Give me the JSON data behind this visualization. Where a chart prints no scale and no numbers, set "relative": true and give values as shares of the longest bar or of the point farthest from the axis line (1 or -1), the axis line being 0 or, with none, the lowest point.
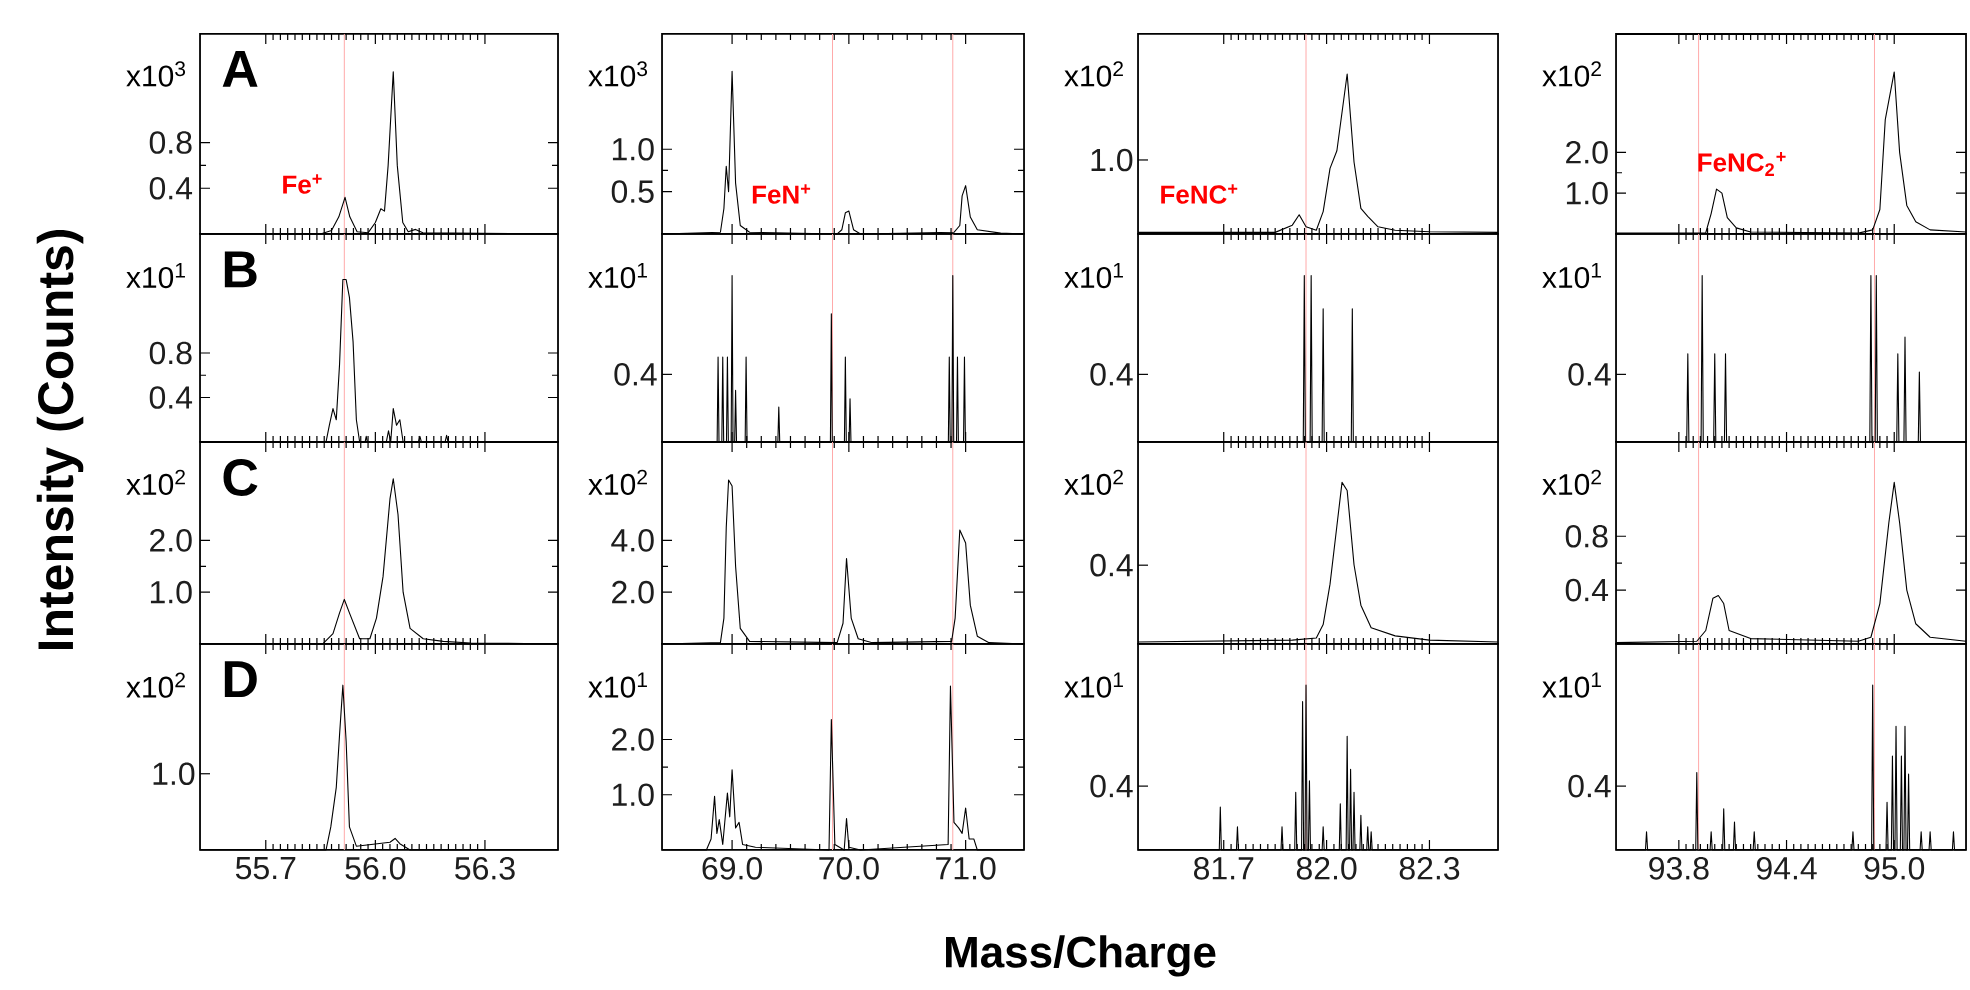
{
  "chart_data": [
    {
      "type": "line",
      "title": "A",
      "ylabel": "x10$^{3}$",
      "color": "#000000",
      "x": [
        55.52,
        55.85,
        55.88,
        55.9,
        55.917,
        55.93,
        55.95,
        55.98,
        56.0,
        56.015,
        56.025,
        56.035,
        56.049,
        56.06,
        56.075,
        56.09,
        56.11,
        56.13,
        56.5
      ],
      "values": [
        0,
        0,
        0.03,
        0.15,
        0.32,
        0.15,
        0.02,
        0.01,
        0.1,
        0.22,
        0.2,
        0.6,
        1.42,
        0.6,
        0.1,
        0.02,
        0.04,
        0.01,
        0
      ],
      "xlim": [
        55.52,
        56.5
      ],
      "ylim": [
        0,
        1.75
      ],
      "xticks": [
        55.7,
        56,
        56.3
      ],
      "yticks": [
        0.4,
        0.8
      ],
      "tick_labels": "y",
      "ref_lines": [
        {
          "axis": "x",
          "value": 55.915,
          "color": "#ffaaaa"
        }
      ],
      "annotations": [
        "Fe$^{+}$"
      ]
    },
    {
      "type": "line",
      "ylabel": "x10$^{3}$",
      "color": "#000000",
      "x": [
        68.4,
        68.9,
        68.93,
        68.95,
        68.97,
        69.0,
        69.03,
        69.07,
        69.15,
        69.9,
        69.94,
        69.97,
        70.0,
        70.04,
        70.1,
        70.9,
        70.95,
        70.97,
        71.0,
        71.04,
        71.1,
        71.3,
        71.5
      ],
      "values": [
        0,
        0.02,
        0.3,
        0.8,
        0.5,
        1.92,
        0.6,
        0.1,
        0.02,
        0,
        0.05,
        0.25,
        0.27,
        0.05,
        0,
        0.02,
        0.1,
        0.45,
        0.57,
        0.2,
        0.05,
        0.01,
        0
      ],
      "xlim": [
        68.4,
        71.5
      ],
      "ylim": [
        0,
        2.36
      ],
      "xticks": [
        69,
        70,
        71
      ],
      "yticks": [
        0.5,
        {
          "value": 1,
          "label": "1.0"
        }
      ],
      "tick_labels": "y",
      "ref_lines": [
        {
          "axis": "x",
          "value": 69.86,
          "color": "#ffaaaa"
        },
        {
          "axis": "x",
          "value": 70.89,
          "color": "#ffaaaa"
        }
      ],
      "annotations": [
        "FeN$^{+}$"
      ]
    },
    {
      "type": "line",
      "relative": true,
      "ylabel": "x10$^{2}$",
      "color": "#000000",
      "x": [
        81.45,
        81.85,
        81.9,
        81.92,
        81.94,
        81.97,
        81.99,
        82.01,
        82.03,
        82.06,
        82.08,
        82.1,
        82.12,
        82.15,
        82.2,
        82.3,
        82.5
      ],
      "values": [
        0.01,
        0.01,
        0.055,
        0.12,
        0.045,
        0.023,
        0.14,
        0.41,
        0.52,
        1,
        0.45,
        0.16,
        0.11,
        0.045,
        0.023,
        0.014,
        0.01
      ],
      "xlim": [
        81.45,
        82.5
      ],
      "xticks": [
        81.7,
        82,
        82.3
      ],
      "tick_labels": "y",
      "ref_lines": [
        {
          "axis": "x",
          "value": 81.94,
          "color": "#ffaaaa"
        }
      ],
      "annotations": [
        "FeNC$^{+}$",
        "1.0"
      ]
    },
    {
      "type": "line",
      "ylabel": "x10$^{2}$",
      "color": "#000000",
      "x": [
        93.45,
        93.95,
        93.98,
        94.01,
        94.04,
        94.07,
        94.12,
        94.2,
        94.8,
        94.88,
        94.92,
        94.95,
        95.0,
        95.03,
        95.07,
        95.12,
        95.2,
        95.4
      ],
      "values": [
        0.02,
        0.03,
        0.5,
        1.1,
        1.0,
        0.4,
        0.15,
        0.05,
        0.02,
        0.1,
        0.6,
        2.8,
        3.97,
        2.0,
        0.7,
        0.3,
        0.1,
        0.05
      ],
      "xlim": [
        93.45,
        95.4
      ],
      "ylim": [
        0,
        4.9
      ],
      "xticks": [
        93.8,
        94.4,
        95
      ],
      "yticks": [
        {
          "value": 1,
          "label": "1.0"
        },
        {
          "value": 2,
          "label": "2.0"
        }
      ],
      "tick_labels": "y",
      "ref_lines": [
        {
          "axis": "x",
          "value": 93.91,
          "color": "#ffaaaa"
        },
        {
          "axis": "x",
          "value": 94.89,
          "color": "#ffaaaa"
        }
      ],
      "annotations": [
        "FeNC$_{2}$$^{+}$"
      ]
    },
    {
      "type": "line",
      "title": "B",
      "ylabel": "x10$^{1}$",
      "color": "#000000",
      "x": [
        55.52,
        55.865,
        55.874,
        55.884,
        55.893,
        55.902,
        55.911,
        55.92,
        55.929,
        55.939,
        55.948,
        55.957,
        55.972,
        55.975,
        55.978,
        56.03,
        56.036,
        56.042,
        56.049,
        56.058,
        56.067,
        56.076,
        56.118,
        56.122,
        56.126,
        56.191,
        56.195,
        56.199,
        56.5
      ],
      "values": [
        0,
        0,
        0.15,
        0.3,
        0.2,
        0.7,
        1.46,
        1.46,
        1.3,
        0.9,
        0.2,
        0,
        0,
        0.05,
        0,
        0,
        0.1,
        0,
        0.3,
        0.15,
        0.2,
        0,
        0,
        0.05,
        0,
        0,
        0.06,
        0,
        0
      ],
      "xlim": [
        55.52,
        56.5
      ],
      "ylim": [
        0,
        1.87
      ],
      "xticks": [
        55.7,
        56,
        56.3
      ],
      "yticks": [
        0.4,
        0.8
      ],
      "tick_labels": "y",
      "ref_lines": [
        {
          "axis": "x",
          "value": 55.915,
          "color": "#ffaaaa"
        }
      ]
    },
    {
      "type": "line",
      "relative": true,
      "ylabel": "x10$^{1}$",
      "color": "#000000",
      "x": [
        68.4,
        68.872,
        68.88,
        68.888,
        68.912,
        68.92,
        68.928,
        68.952,
        68.96,
        68.968,
        68.992,
        69.0,
        69.008,
        69.022,
        69.03,
        69.038,
        69.112,
        69.12,
        69.128,
        69.392,
        69.4,
        69.408,
        69.842,
        69.85,
        69.858,
        69.962,
        69.97,
        69.978,
        70.002,
        70.01,
        70.018,
        70.852,
        70.86,
        70.868,
        70.882,
        70.89,
        70.898,
        70.922,
        70.93,
        70.938,
        70.982,
        70.99,
        70.998,
        71.5
      ],
      "values": [
        0,
        0,
        0.51,
        0,
        0,
        0.51,
        0,
        0,
        0.51,
        0,
        0,
        1,
        0,
        0,
        0.31,
        0,
        0,
        0.51,
        0,
        0,
        0.21,
        0,
        0,
        0.77,
        0,
        0,
        0.51,
        0,
        0,
        0.26,
        0,
        0,
        0.51,
        0,
        0,
        1,
        0,
        0,
        0.51,
        0,
        0,
        0.51,
        0,
        0
      ],
      "xlim": [
        68.4,
        71.5
      ],
      "xticks": [
        69,
        70,
        71
      ],
      "tick_labels": "y",
      "ref_lines": [
        {
          "axis": "x",
          "value": 69.86,
          "color": "#ffaaaa"
        },
        {
          "axis": "x",
          "value": 70.89,
          "color": "#ffaaaa"
        }
      ],
      "annotations": [
        "0.4"
      ]
    },
    {
      "type": "line",
      "relative": true,
      "ylabel": "x10$^{1}$",
      "color": "#000000",
      "x": [
        81.45,
        81.932,
        81.935,
        81.938,
        81.952,
        81.955,
        81.958,
        81.987,
        81.99,
        81.993,
        82.072,
        82.075,
        82.078,
        82.5
      ],
      "values": [
        0,
        0,
        1,
        0,
        0,
        1,
        0,
        0,
        0.8,
        0,
        0,
        0.8,
        0,
        0
      ],
      "xlim": [
        81.45,
        82.5
      ],
      "xticks": [
        81.7,
        82,
        82.3
      ],
      "tick_labels": "y",
      "ref_lines": [
        {
          "axis": "x",
          "value": 81.94,
          "color": "#ffaaaa"
        }
      ],
      "annotations": [
        "0.4"
      ]
    },
    {
      "type": "line",
      "relative": true,
      "ylabel": "x10$^{1}$",
      "color": "#000000",
      "x": [
        93.45,
        93.844,
        93.85,
        93.856,
        93.924,
        93.93,
        93.936,
        93.994,
        94.0,
        94.006,
        94.054,
        94.06,
        94.066,
        94.864,
        94.87,
        94.876,
        94.894,
        94.9,
        94.906,
        95.014,
        95.02,
        95.026,
        95.054,
        95.06,
        95.066,
        95.134,
        95.14,
        95.146,
        95.4
      ],
      "values": [
        0,
        0,
        0.53,
        0,
        0,
        1,
        0,
        0,
        0.53,
        0,
        0,
        0.53,
        0,
        0,
        1,
        0,
        0,
        1,
        0,
        0,
        0.53,
        0,
        0,
        0.63,
        0,
        0,
        0.42,
        0,
        0
      ],
      "xlim": [
        93.45,
        95.4
      ],
      "xticks": [
        93.8,
        94.4,
        95
      ],
      "tick_labels": "y",
      "ref_lines": [
        {
          "axis": "x",
          "value": 93.91,
          "color": "#ffaaaa"
        },
        {
          "axis": "x",
          "value": 94.89,
          "color": "#ffaaaa"
        }
      ],
      "annotations": [
        "0.4"
      ]
    },
    {
      "type": "line",
      "title": "C",
      "ylabel": "x10$^{2}$",
      "color": "#000000",
      "x": [
        55.52,
        55.856,
        55.884,
        55.902,
        55.915,
        55.929,
        55.957,
        55.985,
        56.003,
        56.021,
        56.04,
        56.049,
        56.062,
        56.076,
        56.095,
        56.131,
        56.186,
        56.26,
        56.5
      ],
      "values": [
        0,
        0,
        0.2,
        0.6,
        0.86,
        0.6,
        0.1,
        0.1,
        0.5,
        1.3,
        2.8,
        3.19,
        2.5,
        1.0,
        0.3,
        0.1,
        0.05,
        0.02,
        0
      ],
      "xlim": [
        55.52,
        56.5
      ],
      "ylim": [
        0,
        3.9
      ],
      "xticks": [
        55.7,
        56,
        56.3
      ],
      "yticks": [
        {
          "value": 1,
          "label": "1.0"
        },
        {
          "value": 2,
          "label": "2.0"
        }
      ],
      "tick_labels": "y",
      "ref_lines": [
        {
          "axis": "x",
          "value": 55.915,
          "color": "#ffaaaa"
        }
      ]
    },
    {
      "type": "line",
      "ylabel": "x10$^{2}$",
      "color": "#000000",
      "x": [
        68.4,
        68.9,
        68.93,
        68.95,
        68.97,
        69.0,
        69.03,
        69.07,
        69.15,
        69.9,
        69.95,
        69.98,
        70.02,
        70.08,
        70.2,
        70.88,
        70.91,
        70.95,
        71.0,
        71.04,
        71.1,
        71.2,
        71.5
      ],
      "values": [
        0,
        0.05,
        1.0,
        4.5,
        6.33,
        6.1,
        3.0,
        0.6,
        0.1,
        0.05,
        0.8,
        3.3,
        1.0,
        0.2,
        0.05,
        0.1,
        1.0,
        4.4,
        3.9,
        1.5,
        0.3,
        0.05,
        0
      ],
      "xlim": [
        68.4,
        71.5
      ],
      "ylim": [
        0,
        7.8
      ],
      "xticks": [
        69,
        70,
        71
      ],
      "yticks": [
        {
          "value": 2,
          "label": "2.0"
        },
        {
          "value": 4,
          "label": "4.0"
        }
      ],
      "tick_labels": "y",
      "ref_lines": [
        {
          "axis": "x",
          "value": 69.86,
          "color": "#ffaaaa"
        },
        {
          "axis": "x",
          "value": 70.89,
          "color": "#ffaaaa"
        }
      ]
    },
    {
      "type": "line",
      "relative": true,
      "ylabel": "x10$^{2}$",
      "color": "#000000",
      "x": [
        81.45,
        81.9,
        81.97,
        81.99,
        82.01,
        82.03,
        82.045,
        82.06,
        82.08,
        82.1,
        82.13,
        82.2,
        82.3,
        82.5
      ],
      "values": [
        0.012,
        0.024,
        0.037,
        0.12,
        0.37,
        0.73,
        1,
        0.95,
        0.49,
        0.24,
        0.1,
        0.05,
        0.024,
        0.012
      ],
      "xlim": [
        81.45,
        82.5
      ],
      "xticks": [
        81.7,
        82,
        82.3
      ],
      "tick_labels": "y",
      "ref_lines": [
        {
          "axis": "x",
          "value": 81.94,
          "color": "#ffaaaa"
        }
      ],
      "annotations": [
        "0.4"
      ]
    },
    {
      "type": "line",
      "ylabel": "x10$^{2}$",
      "color": "#000000",
      "x": [
        93.45,
        93.9,
        93.95,
        93.99,
        94.02,
        94.05,
        94.08,
        94.2,
        94.8,
        94.87,
        94.92,
        94.97,
        95.0,
        95.03,
        95.07,
        95.12,
        95.2,
        95.4
      ],
      "values": [
        0.01,
        0.02,
        0.1,
        0.34,
        0.36,
        0.3,
        0.1,
        0.04,
        0.02,
        0.05,
        0.3,
        0.9,
        1.2,
        0.9,
        0.4,
        0.15,
        0.05,
        0.02
      ],
      "xlim": [
        93.45,
        95.4
      ],
      "ylim": [
        0,
        1.5
      ],
      "xticks": [
        93.8,
        94.4,
        95
      ],
      "yticks": [
        0.4,
        0.8
      ],
      "tick_labels": "y",
      "ref_lines": [
        {
          "axis": "x",
          "value": 93.91,
          "color": "#ffaaaa"
        },
        {
          "axis": "x",
          "value": 94.89,
          "color": "#ffaaaa"
        }
      ]
    },
    {
      "type": "line",
      "relative": true,
      "title": "D",
      "ylabel": "x10$^{2}$",
      "color": "#000000",
      "x": [
        55.52,
        55.865,
        55.878,
        55.893,
        55.902,
        55.911,
        55.92,
        55.929,
        55.948,
        56.04,
        56.054,
        56.067,
        56.095,
        56.5
      ],
      "values": [
        0,
        0,
        0.14,
        0.38,
        0.7,
        1,
        0.66,
        0.14,
        0.023,
        0.047,
        0.07,
        0.038,
        0,
        0
      ],
      "xlim": [
        55.52,
        56.5
      ],
      "xticks": [
        55.7,
        {
          "value": 56,
          "label": "56.0"
        },
        56.3
      ],
      "ref_lines": [
        {
          "axis": "x",
          "value": 55.915,
          "color": "#ffaaaa"
        }
      ],
      "annotations": [
        "1.0"
      ]
    },
    {
      "type": "line",
      "ylabel": "x10$^{1}$",
      "color": "#000000",
      "x": [
        68.4,
        68.78,
        68.82,
        68.85,
        68.87,
        68.89,
        68.92,
        68.96,
        68.98,
        69.0,
        69.03,
        69.06,
        69.09,
        69.2,
        69.83,
        69.85,
        69.88,
        69.96,
        69.98,
        70.0,
        70.1,
        70.85,
        70.87,
        70.9,
        70.94,
        70.97,
        71.0,
        71.03,
        71.07,
        71.1,
        71.5
      ],
      "values": [
        0,
        0,
        0.2,
        0.97,
        0.3,
        0.55,
        0.1,
        1.03,
        0.6,
        1.45,
        0.4,
        0.5,
        0.1,
        0.05,
        0,
        2.36,
        0.1,
        0,
        0.57,
        0.05,
        0,
        0.1,
        2.97,
        0.5,
        0.4,
        0.3,
        0.76,
        0.2,
        0.2,
        0,
        0
      ],
      "xlim": [
        68.4,
        71.5
      ],
      "ylim": [
        0,
        3.73
      ],
      "xticks": [
        {
          "value": 69,
          "label": "69.0"
        },
        {
          "value": 70,
          "label": "70.0"
        },
        {
          "value": 71,
          "label": "71.0"
        }
      ],
      "yticks": [
        {
          "value": 1,
          "label": "1.0"
        },
        {
          "value": 2,
          "label": "2.0"
        }
      ],
      "ref_lines": [
        {
          "axis": "x",
          "value": 69.86,
          "color": "#ffaaaa"
        },
        {
          "axis": "x",
          "value": 70.89,
          "color": "#ffaaaa"
        }
      ]
    },
    {
      "type": "line",
      "relative": true,
      "ylabel": "x10$^{1}$",
      "color": "#000000",
      "x": [
        81.45,
        81.687,
        81.69,
        81.693,
        81.737,
        81.74,
        81.743,
        81.867,
        81.87,
        81.873,
        81.907,
        81.91,
        81.913,
        81.927,
        81.93,
        81.933,
        81.937,
        81.94,
        81.943,
        81.947,
        81.95,
        81.953,
        81.987,
        81.99,
        81.993,
        82.037,
        82.04,
        82.043,
        82.057,
        82.06,
        82.063,
        82.067,
        82.07,
        82.073,
        82.077,
        82.08,
        82.083,
        82.097,
        82.1,
        82.103,
        82.117,
        82.12,
        82.123,
        82.127,
        82.13,
        82.133,
        82.5
      ],
      "values": [
        0,
        0,
        0.26,
        0,
        0,
        0.14,
        0,
        0,
        0.14,
        0,
        0,
        0.35,
        0,
        0,
        0.9,
        0,
        0,
        1,
        0,
        0,
        0.42,
        0,
        0,
        0.14,
        0,
        0,
        0.28,
        0,
        0,
        0.69,
        0,
        0,
        0.49,
        0,
        0,
        0.35,
        0,
        0,
        0.21,
        0,
        0,
        0.14,
        0,
        0,
        0.11,
        0,
        0
      ],
      "xlim": [
        81.45,
        82.5
      ],
      "xticks": [
        81.7,
        {
          "value": 82,
          "label": "82.0"
        },
        82.3
      ],
      "ref_lines": [
        {
          "axis": "x",
          "value": 81.94,
          "color": "#ffaaaa"
        }
      ],
      "annotations": [
        "0.4"
      ]
    },
    {
      "type": "line",
      "relative": true,
      "ylabel": "x10$^{1}$",
      "color": "#000000",
      "x": [
        93.45,
        93.614,
        93.62,
        93.626,
        93.894,
        93.9,
        93.906,
        93.974,
        93.98,
        93.986,
        94.044,
        94.05,
        94.056,
        94.104,
        94.11,
        94.116,
        94.214,
        94.22,
        94.226,
        94.764,
        94.77,
        94.776,
        94.874,
        94.88,
        94.886,
        94.954,
        94.96,
        94.966,
        94.984,
        94.99,
        94.996,
        95.004,
        95.01,
        95.016,
        95.034,
        95.04,
        95.046,
        95.054,
        95.06,
        95.066,
        95.074,
        95.08,
        95.086,
        95.144,
        95.15,
        95.156,
        95.194,
        95.2,
        95.206,
        95.324,
        95.33,
        95.336,
        95.4
      ],
      "values": [
        0,
        0,
        0.11,
        0,
        0,
        0.47,
        0,
        0,
        0.11,
        0,
        0,
        0.25,
        0,
        0,
        0.17,
        0,
        0,
        0.11,
        0,
        0,
        0.11,
        0,
        0,
        1,
        0,
        0,
        0.29,
        0,
        0,
        0.57,
        0,
        0,
        0.75,
        0,
        0,
        0.57,
        0,
        0,
        0.75,
        0,
        0,
        0.46,
        0,
        0,
        0.11,
        0,
        0,
        0.11,
        0,
        0,
        0.11,
        0,
        0
      ],
      "xlim": [
        93.45,
        95.4
      ],
      "xticks": [
        93.8,
        94.4,
        {
          "value": 95,
          "label": "95.0"
        }
      ],
      "ref_lines": [
        {
          "axis": "x",
          "value": 93.91,
          "color": "#ffaaaa"
        },
        {
          "axis": "x",
          "value": 94.89,
          "color": "#ffaaaa"
        }
      ],
      "annotations": [
        "0.4"
      ]
    },
    {
      "type": "other",
      "xlabel": "Mass/Charge",
      "ylabel": "Intensity (Counts)"
    }
  ]
}
